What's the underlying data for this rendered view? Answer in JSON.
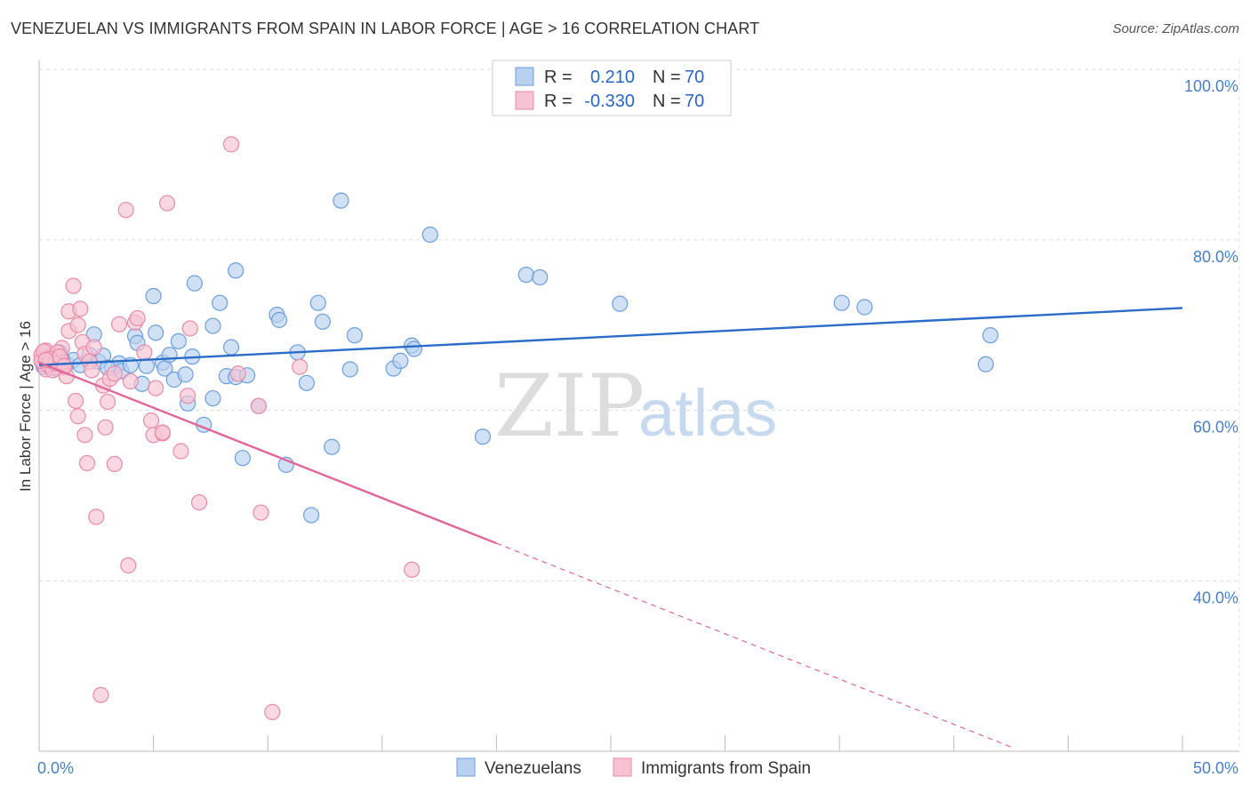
{
  "header": {
    "title": "VENEZUELAN VS IMMIGRANTS FROM SPAIN IN LABOR FORCE | AGE > 16 CORRELATION CHART",
    "source": "Source: ZipAtlas.com"
  },
  "watermark": {
    "zip": "ZIP",
    "atlas": "atlas"
  },
  "legend": {
    "rows": [
      {
        "r_label": "R =",
        "r_value": "0.210",
        "n_label": "N =",
        "n_value": "70"
      },
      {
        "r_label": "R =",
        "r_value": "-0.330",
        "n_label": "N =",
        "n_value": "70"
      }
    ]
  },
  "bottom_legend": [
    "Venezuelans",
    "Immigrants from Spain"
  ],
  "colors": {
    "blue_fill": "#b9d1f0",
    "blue_stroke": "#6b9ee0",
    "blue_line": "#2b6cc8",
    "pink_fill": "#f7c3d3",
    "pink_stroke": "#e88aa8",
    "pink_line": "#e0669a",
    "grid": "#dddddd",
    "tick_text": "#4a7fc8"
  },
  "chart_data": {
    "type": "scatter",
    "xlabel": "",
    "ylabel": "In Labor Force | Age > 16",
    "xlim": [
      0,
      50
    ],
    "ylim": [
      20,
      100
    ],
    "x_tick_labels": [
      "0.0%",
      "50.0%"
    ],
    "y_ticks": [
      40,
      60,
      80,
      100
    ],
    "y_tick_labels": [
      "40.0%",
      "60.0%",
      "80.0%",
      "100.0%"
    ],
    "grid": true,
    "series": [
      {
        "name": "Venezuelans",
        "color": "#b9d1f0",
        "points": [
          [
            0.1,
            65.8
          ],
          [
            0.3,
            66.3
          ],
          [
            0.5,
            65.6
          ],
          [
            0.7,
            64.9
          ],
          [
            0.9,
            66.8
          ],
          [
            1.2,
            65.4
          ],
          [
            1.5,
            65.9
          ],
          [
            1.8,
            65.3
          ],
          [
            2.2,
            66.5
          ],
          [
            2.4,
            68.9
          ],
          [
            2.6,
            65.7
          ],
          [
            2.8,
            66.4
          ],
          [
            3.2,
            64.9
          ],
          [
            3.5,
            65.5
          ],
          [
            3.6,
            64.6
          ],
          [
            4.0,
            65.3
          ],
          [
            4.2,
            68.7
          ],
          [
            4.3,
            67.9
          ],
          [
            4.5,
            63.1
          ],
          [
            4.7,
            65.2
          ],
          [
            5.0,
            73.4
          ],
          [
            5.1,
            69.1
          ],
          [
            5.4,
            65.6
          ],
          [
            5.5,
            64.9
          ],
          [
            5.7,
            66.5
          ],
          [
            5.9,
            63.6
          ],
          [
            6.1,
            68.1
          ],
          [
            6.4,
            64.2
          ],
          [
            6.5,
            60.8
          ],
          [
            6.7,
            66.3
          ],
          [
            6.8,
            74.9
          ],
          [
            7.2,
            58.3
          ],
          [
            7.6,
            61.4
          ],
          [
            7.6,
            69.9
          ],
          [
            7.9,
            72.6
          ],
          [
            8.2,
            64.0
          ],
          [
            8.4,
            67.4
          ],
          [
            8.6,
            76.4
          ],
          [
            8.6,
            63.9
          ],
          [
            9.1,
            64.1
          ],
          [
            8.9,
            54.4
          ],
          [
            9.6,
            60.5
          ],
          [
            10.4,
            71.2
          ],
          [
            10.5,
            70.6
          ],
          [
            10.8,
            53.6
          ],
          [
            11.3,
            66.8
          ],
          [
            11.7,
            63.2
          ],
          [
            11.9,
            47.7
          ],
          [
            12.2,
            72.6
          ],
          [
            12.4,
            70.4
          ],
          [
            12.8,
            55.7
          ],
          [
            13.2,
            84.6
          ],
          [
            13.6,
            64.8
          ],
          [
            13.8,
            68.8
          ],
          [
            15.5,
            64.9
          ],
          [
            15.8,
            65.8
          ],
          [
            16.3,
            67.6
          ],
          [
            16.4,
            67.2
          ],
          [
            17.1,
            80.6
          ],
          [
            19.4,
            56.9
          ],
          [
            21.3,
            75.9
          ],
          [
            21.9,
            75.6
          ],
          [
            25.4,
            72.5
          ],
          [
            35.1,
            72.6
          ],
          [
            36.1,
            72.1
          ],
          [
            41.4,
            65.4
          ],
          [
            41.6,
            68.8
          ],
          [
            0.2,
            65.1
          ],
          [
            1.0,
            66.0
          ],
          [
            3.0,
            65.0
          ]
        ]
      },
      {
        "name": "Immigrants from Spain",
        "color": "#f7c3d3",
        "points": [
          [
            0.1,
            66.5
          ],
          [
            0.2,
            65.4
          ],
          [
            0.3,
            64.8
          ],
          [
            0.3,
            67.0
          ],
          [
            0.4,
            66.1
          ],
          [
            0.5,
            65.7
          ],
          [
            0.6,
            66.4
          ],
          [
            0.7,
            65.1
          ],
          [
            0.8,
            66.2
          ],
          [
            0.9,
            65.9
          ],
          [
            1.0,
            67.3
          ],
          [
            1.1,
            65.0
          ],
          [
            1.2,
            64.0
          ],
          [
            1.3,
            69.3
          ],
          [
            1.3,
            71.6
          ],
          [
            1.5,
            74.6
          ],
          [
            1.6,
            61.1
          ],
          [
            1.7,
            70.0
          ],
          [
            1.7,
            59.3
          ],
          [
            1.8,
            71.9
          ],
          [
            1.9,
            68.0
          ],
          [
            2.0,
            66.6
          ],
          [
            2.0,
            57.1
          ],
          [
            2.1,
            53.8
          ],
          [
            2.2,
            65.7
          ],
          [
            2.3,
            64.7
          ],
          [
            2.4,
            67.4
          ],
          [
            2.5,
            47.5
          ],
          [
            2.7,
            26.6
          ],
          [
            2.8,
            62.9
          ],
          [
            2.9,
            58.0
          ],
          [
            3.0,
            61.0
          ],
          [
            3.1,
            63.7
          ],
          [
            3.3,
            64.3
          ],
          [
            3.3,
            53.7
          ],
          [
            3.5,
            70.1
          ],
          [
            3.8,
            83.5
          ],
          [
            3.9,
            41.8
          ],
          [
            4.0,
            63.4
          ],
          [
            4.2,
            70.3
          ],
          [
            4.3,
            70.8
          ],
          [
            4.6,
            66.8
          ],
          [
            4.9,
            58.8
          ],
          [
            5.0,
            57.1
          ],
          [
            5.1,
            62.6
          ],
          [
            5.4,
            57.3
          ],
          [
            5.4,
            57.4
          ],
          [
            5.6,
            84.3
          ],
          [
            6.2,
            55.2
          ],
          [
            6.5,
            61.7
          ],
          [
            6.6,
            69.6
          ],
          [
            7.0,
            49.2
          ],
          [
            8.4,
            91.2
          ],
          [
            8.7,
            64.3
          ],
          [
            9.6,
            60.5
          ],
          [
            9.7,
            48.0
          ],
          [
            10.2,
            24.6
          ],
          [
            11.4,
            65.1
          ],
          [
            16.3,
            41.3
          ],
          [
            0.1,
            65.8
          ],
          [
            0.2,
            66.9
          ],
          [
            0.4,
            65.3
          ],
          [
            0.6,
            64.7
          ],
          [
            0.8,
            66.8
          ],
          [
            1.0,
            65.6
          ],
          [
            0.5,
            66.0
          ],
          [
            0.7,
            65.5
          ],
          [
            0.9,
            66.3
          ],
          [
            1.1,
            65.2
          ],
          [
            0.3,
            65.9
          ]
        ]
      }
    ],
    "trendlines": [
      {
        "series": "Venezuelans",
        "from": [
          0,
          65.3
        ],
        "to": [
          50,
          72.0
        ],
        "style": "solid"
      },
      {
        "series": "Immigrants from Spain",
        "from": [
          0,
          65.6
        ],
        "to": [
          20,
          44.4
        ],
        "style": "solid"
      },
      {
        "series": "Immigrants from Spain",
        "from": [
          20,
          44.4
        ],
        "to": [
          42.5,
          20.5
        ],
        "style": "dashed"
      }
    ]
  }
}
